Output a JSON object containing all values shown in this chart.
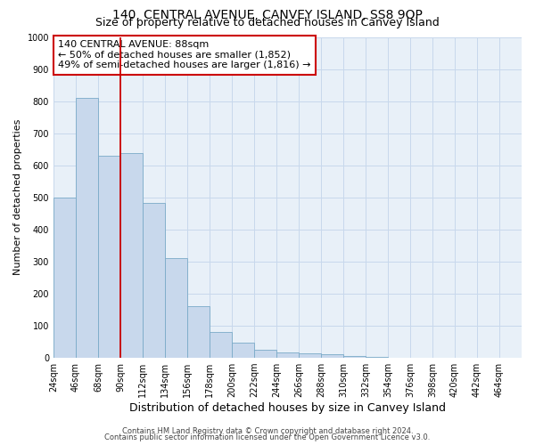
{
  "title": "140, CENTRAL AVENUE, CANVEY ISLAND, SS8 9QP",
  "subtitle": "Size of property relative to detached houses in Canvey Island",
  "xlabel": "Distribution of detached houses by size in Canvey Island",
  "ylabel": "Number of detached properties",
  "bin_labels": [
    "24sqm",
    "46sqm",
    "68sqm",
    "90sqm",
    "112sqm",
    "134sqm",
    "156sqm",
    "178sqm",
    "200sqm",
    "222sqm",
    "244sqm",
    "266sqm",
    "288sqm",
    "310sqm",
    "332sqm",
    "354sqm",
    "376sqm",
    "398sqm",
    "420sqm",
    "442sqm",
    "464sqm"
  ],
  "bin_edges": [
    24,
    46,
    68,
    90,
    112,
    134,
    156,
    178,
    200,
    222,
    244,
    266,
    288,
    310,
    332,
    354,
    376,
    398,
    420,
    442,
    464
  ],
  "bar_heights": [
    500,
    810,
    630,
    637,
    483,
    312,
    160,
    80,
    47,
    25,
    17,
    15,
    10,
    5,
    2,
    1,
    0,
    0,
    0,
    0
  ],
  "bar_color": "#c8d8ec",
  "bar_edgecolor": "#7aaac8",
  "ylim": [
    0,
    1000
  ],
  "yticks": [
    0,
    100,
    200,
    300,
    400,
    500,
    600,
    700,
    800,
    900,
    1000
  ],
  "vline_x": 90,
  "vline_color": "#cc0000",
  "annotation_title": "140 CENTRAL AVENUE: 88sqm",
  "annotation_line1": "← 50% of detached houses are smaller (1,852)",
  "annotation_line2": "49% of semi-detached houses are larger (1,816) →",
  "annotation_box_color": "#cc0000",
  "footer_line1": "Contains HM Land Registry data © Crown copyright and database right 2024.",
  "footer_line2": "Contains public sector information licensed under the Open Government Licence v3.0.",
  "grid_color": "#c8d8ec",
  "bg_color": "#e8f0f8",
  "title_fontsize": 10,
  "subtitle_fontsize": 9,
  "xlabel_fontsize": 9,
  "ylabel_fontsize": 8,
  "tick_fontsize": 7,
  "annotation_fontsize": 8,
  "footer_fontsize": 6
}
